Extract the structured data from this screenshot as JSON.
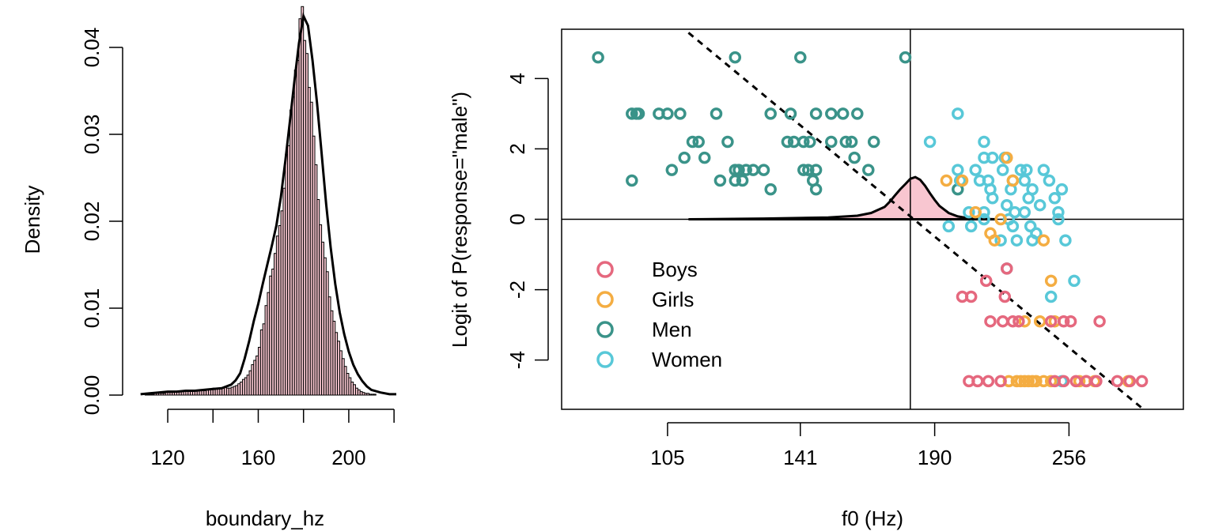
{
  "colors": {
    "hist_fill": "#f8c6d0",
    "Boys": "#e5687e",
    "Girls": "#f4ad42",
    "Men": "#3a9389",
    "Women": "#58c8d8",
    "line": "#000000"
  },
  "chart_data": [
    {
      "type": "histogram",
      "title": "",
      "xlabel": "boundary_hz",
      "ylabel": "Density",
      "xlim": [
        106,
        221
      ],
      "ylim": [
        0,
        0.045
      ],
      "xticks": [
        120,
        140,
        160,
        180,
        200,
        220
      ],
      "xtick_labels": [
        "120",
        "160",
        "200"
      ],
      "yticks": [
        0.0,
        0.01,
        0.02,
        0.03,
        0.04
      ],
      "ytick_labels": [
        "0.00",
        "0.01",
        "0.02",
        "0.03",
        "0.04"
      ],
      "bin_width": 1,
      "bins_start": 110,
      "densities": [
        0.0001,
        0.0001,
        0.0001,
        0.0001,
        0.0002,
        0.0002,
        0.0002,
        0.0002,
        0.0002,
        0.0003,
        0.0003,
        0.0003,
        0.0003,
        0.0004,
        0.0004,
        0.0004,
        0.0004,
        0.0005,
        0.0005,
        0.0005,
        0.0005,
        0.0005,
        0.0005,
        0.0005,
        0.0005,
        0.0005,
        0.0005,
        0.0006,
        0.0006,
        0.0007,
        0.0008,
        0.0008,
        0.0007,
        0.0007,
        0.0008,
        0.0009,
        0.0008,
        0.0008,
        0.0009,
        0.001,
        0.0011,
        0.0013,
        0.0015,
        0.0018,
        0.002,
        0.0023,
        0.0028,
        0.0035,
        0.004,
        0.0045,
        0.0055,
        0.0075,
        0.0082,
        0.0103,
        0.0118,
        0.0137,
        0.0145,
        0.0163,
        0.0183,
        0.0195,
        0.0212,
        0.0238,
        0.0277,
        0.0287,
        0.0328,
        0.0343,
        0.0374,
        0.0385,
        0.0433,
        0.0447,
        0.0408,
        0.0393,
        0.0354,
        0.0337,
        0.0298,
        0.0265,
        0.0225,
        0.0196,
        0.0176,
        0.0158,
        0.0142,
        0.0113,
        0.0097,
        0.0085,
        0.0072,
        0.0062,
        0.0051,
        0.0042,
        0.0033,
        0.0025,
        0.002,
        0.0015,
        0.0012,
        0.0008,
        0.0006,
        0.0004,
        0.0003,
        0.0002,
        0.0002,
        0.0001,
        0.0001,
        0.0001
      ],
      "density_curve": {
        "x": [
          108,
          112,
          116,
          120,
          124,
          128,
          132,
          136,
          140,
          144,
          148,
          150,
          152,
          154,
          156,
          158,
          160,
          162,
          164,
          166,
          168,
          170,
          172,
          174,
          176,
          178,
          180,
          182,
          184,
          186,
          188,
          190,
          192,
          194,
          196,
          198,
          200,
          202,
          204,
          206,
          208,
          210,
          214,
          218,
          221
        ],
        "y": [
          0.0001,
          0.0002,
          0.0003,
          0.0004,
          0.0004,
          0.0005,
          0.0005,
          0.0006,
          0.0007,
          0.0008,
          0.0012,
          0.0017,
          0.0025,
          0.0042,
          0.0062,
          0.0085,
          0.0105,
          0.0128,
          0.015,
          0.0172,
          0.0195,
          0.0228,
          0.027,
          0.0315,
          0.0362,
          0.0405,
          0.0436,
          0.0425,
          0.0385,
          0.0335,
          0.0278,
          0.022,
          0.017,
          0.0128,
          0.0095,
          0.007,
          0.005,
          0.0035,
          0.0024,
          0.0016,
          0.001,
          0.0006,
          0.0003,
          0.0001,
          0.0001
        ]
      }
    },
    {
      "type": "scatter",
      "title": "",
      "xlabel": "f0 (Hz)",
      "ylabel": "Logit of P(response=\"male\")",
      "x_scale": "log",
      "xlim": [
        83,
        330
      ],
      "ylim": [
        -5.4,
        5.4
      ],
      "xticks": [
        105,
        141,
        190,
        256
      ],
      "xtick_labels": [
        "105",
        "141",
        "190",
        "256"
      ],
      "yticks": [
        -4,
        -2,
        0,
        2,
        4
      ],
      "ytick_labels": [
        "-4",
        "-2",
        "0",
        "2",
        "4"
      ],
      "hline_y": 0,
      "vline_x": 180,
      "regression_line": {
        "x": [
          110,
          302
        ],
        "y": [
          5.3,
          -5.4
        ]
      },
      "boundary_density": {
        "x": [
          110,
          130,
          150,
          160,
          165,
          170,
          172,
          174,
          176,
          178,
          180,
          182,
          184,
          186,
          188,
          190,
          192,
          196,
          200,
          205,
          212,
          218
        ],
        "y": [
          0.0,
          0.02,
          0.05,
          0.1,
          0.18,
          0.35,
          0.5,
          0.68,
          0.85,
          1.0,
          1.15,
          1.2,
          1.12,
          0.95,
          0.74,
          0.55,
          0.38,
          0.18,
          0.08,
          0.03,
          0.01,
          0.0
        ]
      },
      "legend": {
        "position": "bottom-left",
        "entries": [
          "Boys",
          "Girls",
          "Men",
          "Women"
        ]
      },
      "series": [
        {
          "name": "Men",
          "points": [
            [
              90,
              4.6
            ],
            [
              122,
              4.6
            ],
            [
              141,
              4.6
            ],
            [
              178,
              4.6
            ],
            [
              97,
              3.0
            ],
            [
              98,
              3.0
            ],
            [
              98.5,
              3.0
            ],
            [
              103,
              3.0
            ],
            [
              105,
              3.0
            ],
            [
              108,
              3.0
            ],
            [
              117,
              3.0
            ],
            [
              132,
              3.0
            ],
            [
              138,
              3.0
            ],
            [
              146,
              3.0
            ],
            [
              151,
              3.0
            ],
            [
              155,
              3.0
            ],
            [
              160,
              3.0
            ],
            [
              111,
              2.2
            ],
            [
              112.5,
              2.2
            ],
            [
              120,
              2.2
            ],
            [
              137,
              2.2
            ],
            [
              139,
              2.2
            ],
            [
              142,
              2.2
            ],
            [
              144,
              2.2
            ],
            [
              151,
              2.2
            ],
            [
              156,
              2.2
            ],
            [
              158,
              2.2
            ],
            [
              166,
              2.2
            ],
            [
              109,
              1.75
            ],
            [
              114,
              1.75
            ],
            [
              159,
              1.75
            ],
            [
              106,
              1.4
            ],
            [
              122,
              1.4
            ],
            [
              123,
              1.4
            ],
            [
              125,
              1.4
            ],
            [
              127,
              1.4
            ],
            [
              130,
              1.4
            ],
            [
              142,
              1.4
            ],
            [
              143.5,
              1.4
            ],
            [
              146,
              1.4
            ],
            [
              164,
              1.4
            ],
            [
              97,
              1.1
            ],
            [
              118,
              1.1
            ],
            [
              122,
              1.1
            ],
            [
              124,
              1.1
            ],
            [
              145,
              1.1
            ],
            [
              132,
              0.85
            ],
            [
              146,
              0.85
            ],
            [
              200,
              0.85
            ]
          ]
        },
        {
          "name": "Women",
          "points": [
            [
              200,
              3.0
            ],
            [
              212,
              2.2
            ],
            [
              188,
              2.2
            ],
            [
              212,
              1.75
            ],
            [
              216,
              1.75
            ],
            [
              200,
              1.4
            ],
            [
              208,
              1.4
            ],
            [
              221,
              1.4
            ],
            [
              233,
              1.4
            ],
            [
              230,
              1.4
            ],
            [
              242,
              1.4
            ],
            [
              222,
              1.75
            ],
            [
              201,
              1.1
            ],
            [
              210,
              1.1
            ],
            [
              214,
              1.1
            ],
            [
              226,
              1.1
            ],
            [
              232,
              1.1
            ],
            [
              236,
              0.85
            ],
            [
              245,
              1.1
            ],
            [
              252,
              0.85
            ],
            [
              215,
              0.85
            ],
            [
              225,
              0.85
            ],
            [
              216,
              0.6
            ],
            [
              234,
              0.6
            ],
            [
              248,
              0.6
            ],
            [
              240,
              0.4
            ],
            [
              223,
              0.4
            ],
            [
              205,
              0.2
            ],
            [
              212,
              0.2
            ],
            [
              227,
              0.2
            ],
            [
              232,
              0.2
            ],
            [
              250,
              0.2
            ],
            [
              212,
              0.0
            ],
            [
              224,
              0.0
            ],
            [
              250,
              0.0
            ],
            [
              196,
              -0.2
            ],
            [
              206,
              -0.2
            ],
            [
              226,
              -0.2
            ],
            [
              235,
              -0.2
            ],
            [
              238,
              -0.4
            ],
            [
              228,
              -0.6
            ],
            [
              236,
              -0.6
            ],
            [
              220,
              -0.6
            ],
            [
              254,
              -0.6
            ],
            [
              223,
              -1.4
            ],
            [
              259,
              -1.75
            ],
            [
              246,
              -2.2
            ],
            [
              252,
              -4.6
            ]
          ]
        },
        {
          "name": "Girls",
          "points": [
            [
              195,
              1.1
            ],
            [
              202,
              1.1
            ],
            [
              223,
              1.75
            ],
            [
              226,
              1.1
            ],
            [
              208,
              0.2
            ],
            [
              220,
              0.0
            ],
            [
              215,
              -0.4
            ],
            [
              217,
              -0.6
            ],
            [
              242,
              -0.6
            ],
            [
              246,
              -1.75
            ],
            [
              240,
              -2.9
            ],
            [
              232,
              -2.9
            ],
            [
              248,
              -2.9
            ],
            [
              224,
              -4.6
            ],
            [
              228,
              -4.6
            ],
            [
              230,
              -4.6
            ],
            [
              232,
              -4.6
            ],
            [
              234,
              -4.6
            ],
            [
              236,
              -4.6
            ],
            [
              238,
              -4.6
            ],
            [
              242,
              -4.6
            ],
            [
              246,
              -4.6
            ],
            [
              262,
              -4.6
            ],
            [
              266,
              -4.6
            ],
            [
              271,
              -4.6
            ],
            [
              292,
              -4.6
            ]
          ]
        },
        {
          "name": "Boys",
          "points": [
            [
              223,
              -1.4
            ],
            [
              213,
              -1.75
            ],
            [
              202,
              -2.2
            ],
            [
              206,
              -2.2
            ],
            [
              222,
              -2.2
            ],
            [
              215,
              -2.9
            ],
            [
              221,
              -2.9
            ],
            [
              226,
              -2.9
            ],
            [
              229,
              -2.9
            ],
            [
              246,
              -2.9
            ],
            [
              253,
              -2.9
            ],
            [
              257,
              -2.9
            ],
            [
              274,
              -2.9
            ],
            [
              205,
              -4.6
            ],
            [
              209,
              -4.6
            ],
            [
              214,
              -4.6
            ],
            [
              220,
              -4.6
            ],
            [
              248,
              -4.6
            ],
            [
              253,
              -4.6
            ],
            [
              260,
              -4.6
            ],
            [
              266,
              -4.6
            ],
            [
              272,
              -4.6
            ],
            [
              285,
              -4.6
            ],
            [
              293,
              -4.6
            ],
            [
              301,
              -4.6
            ]
          ]
        }
      ]
    }
  ]
}
